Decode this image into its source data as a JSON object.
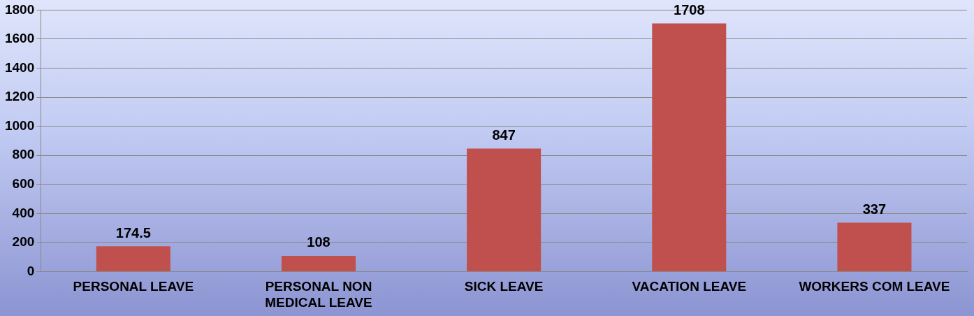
{
  "chart_data": {
    "type": "bar",
    "categories": [
      "PERSONAL LEAVE",
      "PERSONAL NON MEDICAL LEAVE",
      "SICK LEAVE",
      "VACATION LEAVE",
      "WORKERS COM LEAVE"
    ],
    "values": [
      174.5,
      108,
      847,
      1708,
      337
    ],
    "color": "#c0504d",
    "ylim": [
      0,
      1800
    ],
    "yticks": [
      0,
      200,
      400,
      600,
      800,
      1000,
      1200,
      1400,
      1600,
      1800
    ],
    "grid": "y",
    "legend": false,
    "data_labels": true
  }
}
